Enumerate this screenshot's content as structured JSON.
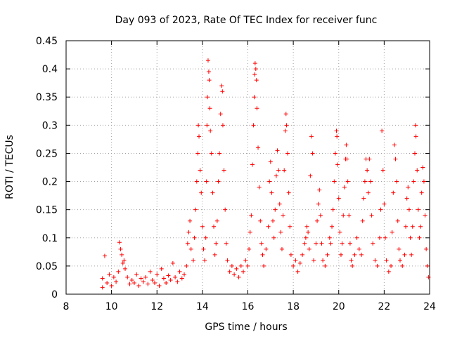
{
  "chart_data": {
    "type": "scatter",
    "title": "Day 093 of 2023, Rate Of TEC Index for receiver func",
    "xlabel": "GPS time / hours",
    "ylabel": "ROTI / TECUs",
    "xlim": [
      8,
      24
    ],
    "ylim": [
      0,
      0.45
    ],
    "x_ticks": [
      "8",
      "10",
      "12",
      "14",
      "16",
      "18",
      "20",
      "22",
      "24"
    ],
    "y_ticks": [
      "0",
      "0.05",
      "0.1",
      "0.15",
      "0.2",
      "0.25",
      "0.3",
      "0.35",
      "0.4",
      "0.45"
    ],
    "grid": true,
    "marker": "plus",
    "color": "#ff0000",
    "series": [
      {
        "points": [
          [
            9.6,
            0.012
          ],
          [
            9.6,
            0.028
          ],
          [
            9.7,
            0.068
          ],
          [
            9.8,
            0.02
          ],
          [
            9.9,
            0.035
          ],
          [
            10.0,
            0.015
          ],
          [
            10.1,
            0.03
          ],
          [
            10.2,
            0.022
          ],
          [
            10.3,
            0.04
          ],
          [
            10.35,
            0.092
          ],
          [
            10.4,
            0.08
          ],
          [
            10.45,
            0.07
          ],
          [
            10.5,
            0.055
          ],
          [
            10.55,
            0.06
          ],
          [
            10.6,
            0.045
          ],
          [
            10.7,
            0.03
          ],
          [
            10.8,
            0.018
          ],
          [
            10.9,
            0.025
          ],
          [
            11.0,
            0.02
          ],
          [
            11.1,
            0.035
          ],
          [
            11.2,
            0.015
          ],
          [
            11.3,
            0.028
          ],
          [
            11.4,
            0.022
          ],
          [
            11.5,
            0.03
          ],
          [
            11.6,
            0.018
          ],
          [
            11.7,
            0.04
          ],
          [
            11.8,
            0.025
          ],
          [
            11.9,
            0.02
          ],
          [
            12.0,
            0.035
          ],
          [
            12.1,
            0.015
          ],
          [
            12.2,
            0.045
          ],
          [
            12.3,
            0.028
          ],
          [
            12.4,
            0.02
          ],
          [
            12.5,
            0.033
          ],
          [
            12.6,
            0.025
          ],
          [
            12.7,
            0.055
          ],
          [
            12.8,
            0.03
          ],
          [
            12.9,
            0.022
          ],
          [
            13.0,
            0.04
          ],
          [
            13.1,
            0.028
          ],
          [
            13.2,
            0.035
          ],
          [
            13.3,
            0.05
          ],
          [
            13.35,
            0.09
          ],
          [
            13.4,
            0.11
          ],
          [
            13.45,
            0.13
          ],
          [
            13.5,
            0.08
          ],
          [
            13.6,
            0.06
          ],
          [
            13.65,
            0.1
          ],
          [
            13.7,
            0.15
          ],
          [
            13.75,
            0.2
          ],
          [
            13.8,
            0.25
          ],
          [
            13.82,
            0.3
          ],
          [
            13.85,
            0.28
          ],
          [
            13.9,
            0.22
          ],
          [
            13.95,
            0.18
          ],
          [
            14.0,
            0.12
          ],
          [
            14.05,
            0.08
          ],
          [
            14.1,
            0.06
          ],
          [
            14.15,
            0.1
          ],
          [
            14.18,
            0.2
          ],
          [
            14.2,
            0.3
          ],
          [
            14.22,
            0.35
          ],
          [
            14.25,
            0.415
          ],
          [
            14.28,
            0.395
          ],
          [
            14.3,
            0.38
          ],
          [
            14.33,
            0.33
          ],
          [
            14.35,
            0.29
          ],
          [
            14.4,
            0.25
          ],
          [
            14.45,
            0.18
          ],
          [
            14.5,
            0.12
          ],
          [
            14.55,
            0.07
          ],
          [
            14.6,
            0.09
          ],
          [
            14.65,
            0.13
          ],
          [
            14.7,
            0.2
          ],
          [
            14.75,
            0.25
          ],
          [
            14.8,
            0.32
          ],
          [
            14.85,
            0.37
          ],
          [
            14.88,
            0.36
          ],
          [
            14.9,
            0.3
          ],
          [
            14.95,
            0.22
          ],
          [
            15.0,
            0.15
          ],
          [
            15.05,
            0.09
          ],
          [
            15.1,
            0.06
          ],
          [
            15.2,
            0.04
          ],
          [
            15.3,
            0.05
          ],
          [
            15.4,
            0.035
          ],
          [
            15.5,
            0.045
          ],
          [
            15.6,
            0.03
          ],
          [
            15.7,
            0.05
          ],
          [
            15.8,
            0.04
          ],
          [
            15.9,
            0.06
          ],
          [
            16.0,
            0.05
          ],
          [
            16.05,
            0.08
          ],
          [
            16.1,
            0.11
          ],
          [
            16.15,
            0.14
          ],
          [
            16.2,
            0.23
          ],
          [
            16.25,
            0.3
          ],
          [
            16.28,
            0.35
          ],
          [
            16.3,
            0.39
          ],
          [
            16.32,
            0.41
          ],
          [
            16.35,
            0.4
          ],
          [
            16.38,
            0.38
          ],
          [
            16.4,
            0.33
          ],
          [
            16.45,
            0.26
          ],
          [
            16.5,
            0.19
          ],
          [
            16.55,
            0.13
          ],
          [
            16.6,
            0.09
          ],
          [
            16.65,
            0.07
          ],
          [
            16.7,
            0.05
          ],
          [
            16.8,
            0.08
          ],
          [
            16.9,
            0.12
          ],
          [
            16.95,
            0.2
          ],
          [
            17.0,
            0.235
          ],
          [
            17.05,
            0.18
          ],
          [
            17.1,
            0.13
          ],
          [
            17.15,
            0.1
          ],
          [
            17.2,
            0.15
          ],
          [
            17.25,
            0.21
          ],
          [
            17.3,
            0.255
          ],
          [
            17.35,
            0.22
          ],
          [
            17.4,
            0.16
          ],
          [
            17.45,
            0.11
          ],
          [
            17.5,
            0.08
          ],
          [
            17.55,
            0.14
          ],
          [
            17.6,
            0.22
          ],
          [
            17.65,
            0.29
          ],
          [
            17.68,
            0.32
          ],
          [
            17.7,
            0.3
          ],
          [
            17.75,
            0.25
          ],
          [
            17.8,
            0.18
          ],
          [
            17.85,
            0.12
          ],
          [
            17.9,
            0.07
          ],
          [
            18.0,
            0.05
          ],
          [
            18.1,
            0.06
          ],
          [
            18.2,
            0.04
          ],
          [
            18.3,
            0.055
          ],
          [
            18.4,
            0.07
          ],
          [
            18.5,
            0.09
          ],
          [
            18.55,
            0.1
          ],
          [
            18.6,
            0.12
          ],
          [
            18.65,
            0.11
          ],
          [
            18.7,
            0.08
          ],
          [
            18.75,
            0.21
          ],
          [
            18.8,
            0.28
          ],
          [
            18.85,
            0.25
          ],
          [
            18.9,
            0.06
          ],
          [
            19.0,
            0.09
          ],
          [
            19.05,
            0.13
          ],
          [
            19.1,
            0.16
          ],
          [
            19.15,
            0.185
          ],
          [
            19.2,
            0.14
          ],
          [
            19.25,
            0.09
          ],
          [
            19.3,
            0.06
          ],
          [
            19.4,
            0.05
          ],
          [
            19.5,
            0.07
          ],
          [
            19.6,
            0.1
          ],
          [
            19.65,
            0.09
          ],
          [
            19.7,
            0.12
          ],
          [
            19.75,
            0.15
          ],
          [
            19.8,
            0.2
          ],
          [
            19.85,
            0.25
          ],
          [
            19.9,
            0.29
          ],
          [
            19.92,
            0.28
          ],
          [
            19.95,
            0.23
          ],
          [
            20.0,
            0.17
          ],
          [
            20.05,
            0.11
          ],
          [
            20.1,
            0.07
          ],
          [
            20.15,
            0.09
          ],
          [
            20.2,
            0.14
          ],
          [
            20.25,
            0.19
          ],
          [
            20.3,
            0.24
          ],
          [
            20.33,
            0.265
          ],
          [
            20.36,
            0.24
          ],
          [
            20.4,
            0.2
          ],
          [
            20.45,
            0.14
          ],
          [
            20.5,
            0.09
          ],
          [
            20.55,
            0.06
          ],
          [
            20.6,
            0.05
          ],
          [
            20.7,
            0.07
          ],
          [
            20.8,
            0.1
          ],
          [
            20.9,
            0.08
          ],
          [
            21.0,
            0.07
          ],
          [
            21.05,
            0.13
          ],
          [
            21.1,
            0.17
          ],
          [
            21.15,
            0.2
          ],
          [
            21.2,
            0.24
          ],
          [
            21.25,
            0.22
          ],
          [
            21.3,
            0.18
          ],
          [
            21.35,
            0.24
          ],
          [
            21.4,
            0.2
          ],
          [
            21.45,
            0.14
          ],
          [
            21.5,
            0.09
          ],
          [
            21.6,
            0.06
          ],
          [
            21.7,
            0.05
          ],
          [
            21.8,
            0.1
          ],
          [
            21.85,
            0.15
          ],
          [
            21.9,
            0.29
          ],
          [
            21.95,
            0.22
          ],
          [
            22.0,
            0.16
          ],
          [
            22.05,
            0.1
          ],
          [
            22.1,
            0.06
          ],
          [
            22.2,
            0.04
          ],
          [
            22.3,
            0.05
          ],
          [
            22.35,
            0.11
          ],
          [
            22.4,
            0.18
          ],
          [
            22.45,
            0.265
          ],
          [
            22.5,
            0.24
          ],
          [
            22.55,
            0.2
          ],
          [
            22.6,
            0.13
          ],
          [
            22.65,
            0.08
          ],
          [
            22.7,
            0.06
          ],
          [
            22.8,
            0.05
          ],
          [
            22.9,
            0.07
          ],
          [
            22.95,
            0.12
          ],
          [
            23.0,
            0.17
          ],
          [
            23.05,
            0.19
          ],
          [
            23.1,
            0.15
          ],
          [
            23.15,
            0.1
          ],
          [
            23.2,
            0.07
          ],
          [
            23.25,
            0.12
          ],
          [
            23.3,
            0.2
          ],
          [
            23.35,
            0.25
          ],
          [
            23.38,
            0.3
          ],
          [
            23.4,
            0.28
          ],
          [
            23.45,
            0.22
          ],
          [
            23.5,
            0.15
          ],
          [
            23.55,
            0.1
          ],
          [
            23.6,
            0.12
          ],
          [
            23.65,
            0.18
          ],
          [
            23.7,
            0.225
          ],
          [
            23.75,
            0.2
          ],
          [
            23.8,
            0.14
          ],
          [
            23.85,
            0.08
          ],
          [
            23.9,
            0.05
          ],
          [
            23.95,
            0.03
          ]
        ]
      }
    ]
  }
}
